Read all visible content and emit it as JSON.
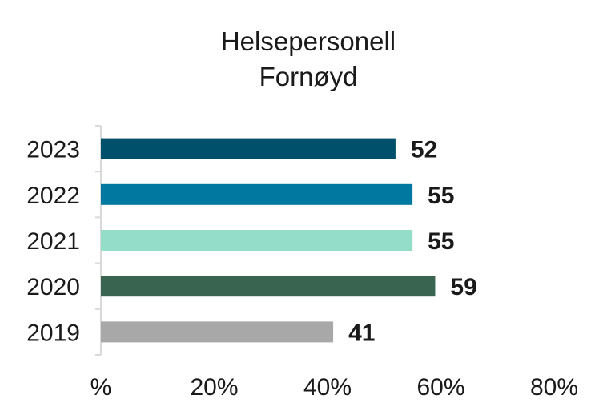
{
  "chart_data": {
    "type": "bar",
    "orientation": "horizontal",
    "title": "Helsepersonell",
    "subtitle": "Fornøyd",
    "categories": [
      "2023",
      "2022",
      "2021",
      "2020",
      "2019"
    ],
    "values": [
      52,
      55,
      55,
      59,
      41
    ],
    "data_labels": [
      "52",
      "55",
      "55",
      "59",
      "41"
    ],
    "colors": [
      "#00506b",
      "#0078a0",
      "#94ddc9",
      "#39644f",
      "#a8a8a8"
    ],
    "xticks": [
      {
        "value": 0,
        "label": "%"
      },
      {
        "value": 20,
        "label": "20%"
      },
      {
        "value": 40,
        "label": "40%"
      },
      {
        "value": 60,
        "label": "60%"
      },
      {
        "value": 80,
        "label": "80%"
      }
    ],
    "xlim": [
      0,
      80
    ],
    "xlabel": "",
    "ylabel": "",
    "grid": false,
    "legend": "none",
    "axis_color": "#d9d9d9"
  }
}
